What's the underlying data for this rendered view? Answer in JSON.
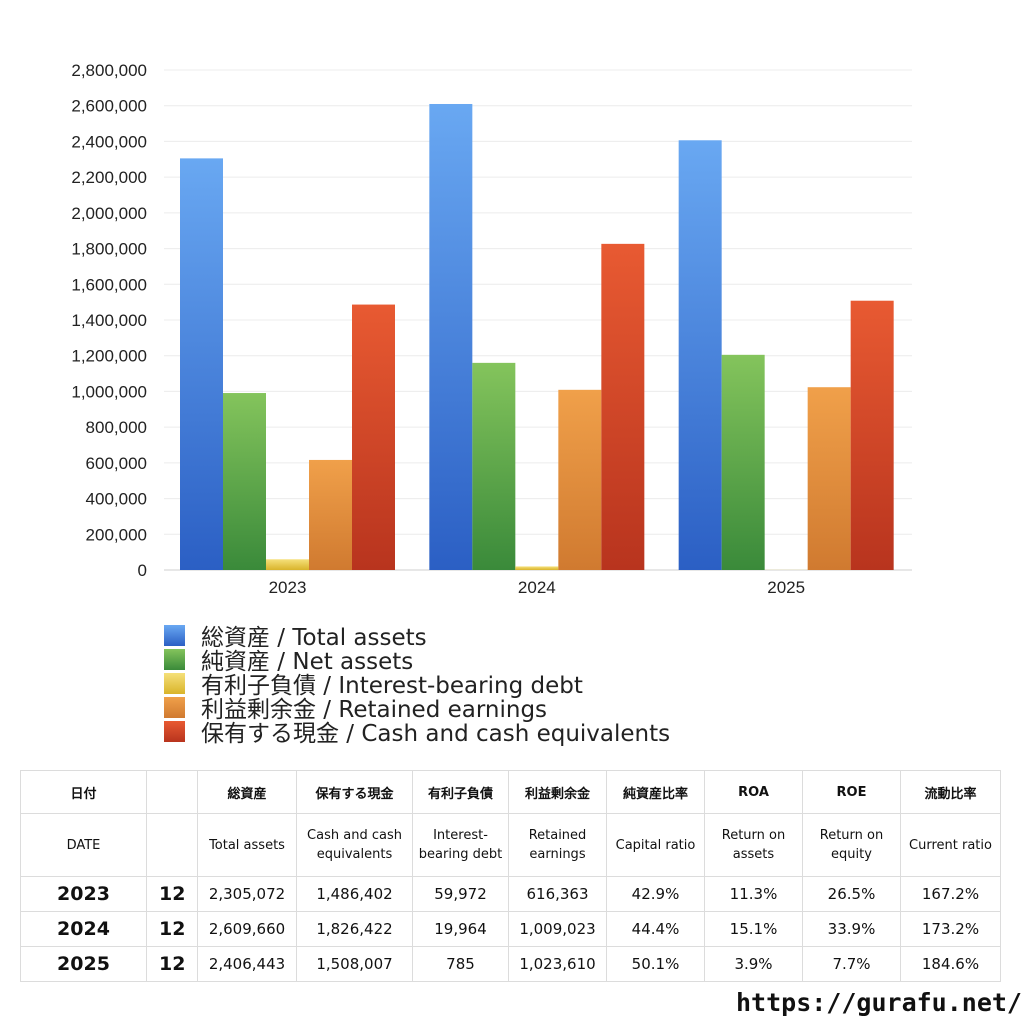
{
  "chart_data": {
    "type": "bar",
    "categories": [
      "2023",
      "2024",
      "2025"
    ],
    "ylim": [
      0,
      2800000
    ],
    "ytick_step": 200000,
    "grid": true,
    "legend_position": "bottom-left",
    "series": [
      {
        "name": "総資産 / Total assets",
        "values": [
          2305072,
          2609660,
          2406443
        ],
        "color_top": "#69a8f2",
        "color_bottom": "#2b5fc4"
      },
      {
        "name": "純資産 / Net assets",
        "values": [
          991000,
          1160000,
          1205000
        ],
        "color_top": "#84c45c",
        "color_bottom": "#3a8a3a"
      },
      {
        "name": "有利子負債 / Interest-bearing debt",
        "values": [
          59972,
          19964,
          785
        ],
        "color_top": "#f5e07a",
        "color_bottom": "#d9b42a"
      },
      {
        "name": "利益剰余金 / Retained earnings",
        "values": [
          616363,
          1009023,
          1023610
        ],
        "color_top": "#f0a04a",
        "color_bottom": "#d07a30"
      },
      {
        "name": "保有する現金 /  Cash and cash equivalents",
        "values": [
          1486402,
          1826422,
          1508007
        ],
        "color_top": "#e85a32",
        "color_bottom": "#b8341e"
      }
    ]
  },
  "table": {
    "header_jp": [
      "日付",
      "",
      "総資産",
      "保有する現金",
      "有利子負債",
      "利益剰余金",
      "純資産比率",
      "ROA",
      "ROE",
      "流動比率"
    ],
    "header_en": [
      "DATE",
      "",
      "Total assets",
      "Cash and cash equivalents",
      "Interest-bearing debt",
      "Retained earnings",
      "Capital ratio",
      "Return on assets",
      "Return on equity",
      "Current ratio"
    ],
    "rows": [
      [
        "2023",
        "12",
        "2,305,072",
        "1,486,402",
        "59,972",
        "616,363",
        "42.9%",
        "11.3%",
        "26.5%",
        "167.2%"
      ],
      [
        "2024",
        "12",
        "2,609,660",
        "1,826,422",
        "19,964",
        "1,009,023",
        "44.4%",
        "15.1%",
        "33.9%",
        "173.2%"
      ],
      [
        "2025",
        "12",
        "2,406,443",
        "1,508,007",
        "785",
        "1,023,610",
        "50.1%",
        "3.9%",
        "7.7%",
        "184.6%"
      ]
    ]
  },
  "site_url": "https://gurafu.net/"
}
